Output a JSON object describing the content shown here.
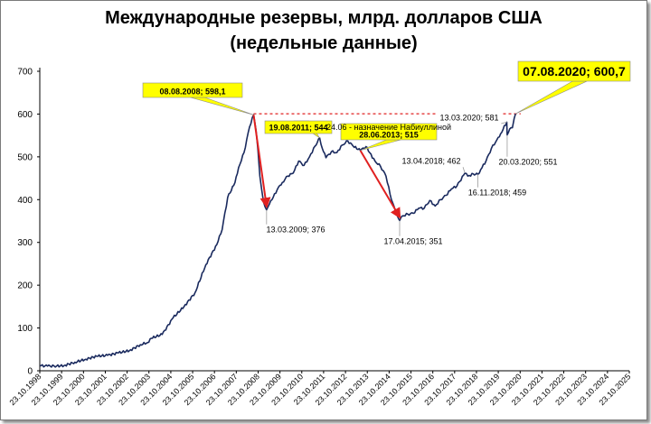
{
  "chart_data": {
    "type": "line",
    "title": "Международные резервы, млрд. долларов США",
    "subtitle": "(недельные данные)",
    "ylim": [
      0,
      700
    ],
    "yticks": [
      0,
      100,
      200,
      300,
      400,
      500,
      600,
      700
    ],
    "xlim": [
      "1998-10-23",
      "2025-10-23"
    ],
    "xticks": [
      "23.10.1998",
      "23.10.1999",
      "23.10.2000",
      "23.10.2001",
      "23.10.2002",
      "23.10.2003",
      "23.10.2004",
      "23.10.2005",
      "23.10.2006",
      "23.10.2007",
      "23.10.2008",
      "23.10.2009",
      "23.10.2010",
      "23.10.2011",
      "23.10.2012",
      "23.10.2013",
      "23.10.2014",
      "23.10.2015",
      "23.10.2016",
      "23.10.2017",
      "23.10.2018",
      "23.10.2019",
      "23.10.2020",
      "23.10.2021",
      "23.10.2022",
      "23.10.2023",
      "23.10.2024",
      "23.10.2025"
    ],
    "grid": false,
    "line_color": "#1a2a5e",
    "reference_level": 600.7,
    "series": [
      {
        "points": [
          [
            "1998-10-23",
            12
          ],
          [
            "1999-03-01",
            11
          ],
          [
            "1999-08-01",
            11
          ],
          [
            "1999-12-01",
            12
          ],
          [
            "2000-06-01",
            20
          ],
          [
            "2000-12-01",
            27
          ],
          [
            "2001-06-01",
            34
          ],
          [
            "2001-12-01",
            36
          ],
          [
            "2002-06-01",
            42
          ],
          [
            "2002-12-01",
            47
          ],
          [
            "2003-06-01",
            61
          ],
          [
            "2003-10-01",
            66
          ],
          [
            "2003-12-01",
            76
          ],
          [
            "2004-06-01",
            85
          ],
          [
            "2004-12-01",
            124
          ],
          [
            "2005-06-01",
            150
          ],
          [
            "2005-12-01",
            182
          ],
          [
            "2006-06-01",
            248
          ],
          [
            "2006-12-01",
            295
          ],
          [
            "2007-03-01",
            330
          ],
          [
            "2007-06-01",
            405
          ],
          [
            "2007-10-01",
            440
          ],
          [
            "2007-12-01",
            475
          ],
          [
            "2008-03-01",
            510
          ],
          [
            "2008-06-01",
            570
          ],
          [
            "2008-08-08",
            598.1
          ],
          [
            "2008-09-20",
            560
          ],
          [
            "2008-10-20",
            515
          ],
          [
            "2008-11-20",
            455
          ],
          [
            "2008-12-20",
            425
          ],
          [
            "2009-01-20",
            395
          ],
          [
            "2009-03-13",
            376
          ],
          [
            "2009-05-01",
            390
          ],
          [
            "2009-07-01",
            405
          ],
          [
            "2009-10-01",
            430
          ],
          [
            "2009-12-01",
            440
          ],
          [
            "2010-03-01",
            455
          ],
          [
            "2010-06-01",
            462
          ],
          [
            "2010-09-01",
            490
          ],
          [
            "2010-12-01",
            480
          ],
          [
            "2011-03-01",
            500
          ],
          [
            "2011-06-01",
            525
          ],
          [
            "2011-08-19",
            544
          ],
          [
            "2011-10-01",
            520
          ],
          [
            "2011-12-01",
            498
          ],
          [
            "2012-03-01",
            512
          ],
          [
            "2012-06-01",
            510
          ],
          [
            "2012-09-01",
            528
          ],
          [
            "2012-12-01",
            537
          ],
          [
            "2013-03-01",
            525
          ],
          [
            "2013-06-28",
            515
          ],
          [
            "2013-10-01",
            524
          ],
          [
            "2013-12-01",
            510
          ],
          [
            "2014-03-01",
            490
          ],
          [
            "2014-06-01",
            478
          ],
          [
            "2014-09-01",
            455
          ],
          [
            "2014-12-01",
            400
          ],
          [
            "2015-02-01",
            375
          ],
          [
            "2015-04-17",
            351
          ],
          [
            "2015-06-01",
            362
          ],
          [
            "2015-09-01",
            366
          ],
          [
            "2015-12-01",
            368
          ],
          [
            "2016-03-01",
            380
          ],
          [
            "2016-06-01",
            380
          ],
          [
            "2016-09-01",
            398
          ],
          [
            "2016-12-01",
            385
          ],
          [
            "2017-03-01",
            400
          ],
          [
            "2017-06-01",
            410
          ],
          [
            "2017-09-01",
            425
          ],
          [
            "2017-12-01",
            432
          ],
          [
            "2018-04-13",
            462
          ],
          [
            "2018-06-01",
            455
          ],
          [
            "2018-09-01",
            460
          ],
          [
            "2018-11-16",
            459
          ],
          [
            "2019-01-01",
            470
          ],
          [
            "2019-04-01",
            490
          ],
          [
            "2019-07-01",
            520
          ],
          [
            "2019-10-01",
            540
          ],
          [
            "2019-12-01",
            554
          ],
          [
            "2020-03-13",
            581
          ],
          [
            "2020-03-20",
            551
          ],
          [
            "2020-05-01",
            565
          ],
          [
            "2020-06-15",
            568
          ],
          [
            "2020-07-15",
            590
          ],
          [
            "2020-08-07",
            600.7
          ]
        ]
      }
    ],
    "annotations": [
      {
        "date": "2008-08-08",
        "value": 598.1,
        "text": "08.08.2008; 598,1",
        "style": "yellow-bold"
      },
      {
        "date": "2020-08-07",
        "value": 600.7,
        "text": "07.08.2020;  600,7",
        "style": "yellow-big"
      },
      {
        "date": "2011-08-19",
        "value": 544,
        "text": "19.08.2011; 544",
        "style": "yellow"
      },
      {
        "date": "2013-06-28",
        "value": 515,
        "text_line1": "24.06 - назначение Набиуллиной",
        "text_line2": "28.06.2013; 515",
        "style": "yellow-small"
      },
      {
        "date": "2009-03-13",
        "value": 376,
        "text": "13.03.2009; 376",
        "style": "white"
      },
      {
        "date": "2015-04-17",
        "value": 351,
        "text": "17.04.2015; 351",
        "style": "white"
      },
      {
        "date": "2018-04-13",
        "value": 462,
        "text": "13.04.2018; 462",
        "style": "white"
      },
      {
        "date": "2018-11-16",
        "value": 459,
        "text": "16.11.2018; 459",
        "style": "white"
      },
      {
        "date": "2020-03-13",
        "value": 581,
        "text": "13.03.2020; 581",
        "style": "white"
      },
      {
        "date": "2020-03-20",
        "value": 551,
        "text": "20.03.2020; 551",
        "style": "white"
      }
    ],
    "arrows": [
      {
        "from": [
          "2008-08-08",
          598.1
        ],
        "to": [
          "2009-03-13",
          376
        ],
        "color": "#e02020"
      },
      {
        "from": [
          "2013-06-28",
          515
        ],
        "to": [
          "2015-04-17",
          351
        ],
        "color": "#e02020"
      }
    ]
  }
}
